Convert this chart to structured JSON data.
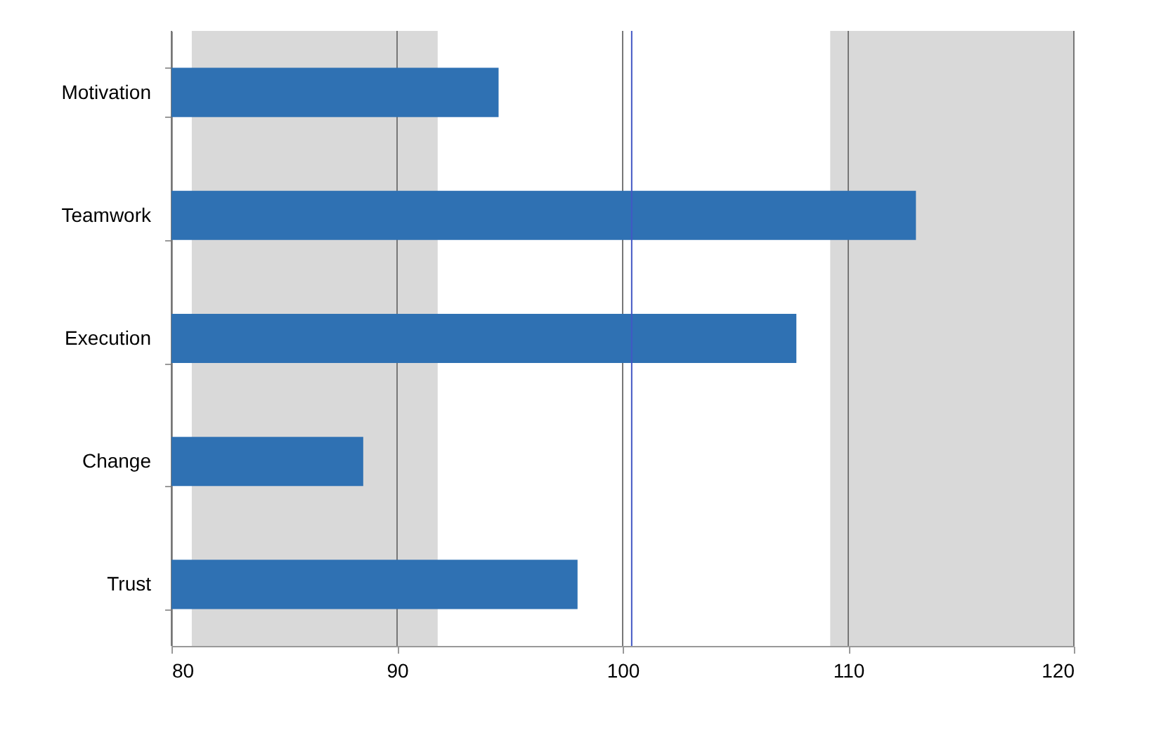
{
  "chart_data": {
    "type": "bar",
    "orientation": "horizontal",
    "categories": [
      "Motivation",
      "Teamwork",
      "Execution",
      "Change",
      "Trust"
    ],
    "values": [
      94.5,
      113,
      107.7,
      88.5,
      98
    ],
    "color": "#2f71b3",
    "xlim": [
      80,
      120
    ],
    "xticks": [
      80,
      90,
      100,
      110,
      120
    ],
    "grid": "x",
    "bands": [
      {
        "axis": "x",
        "from": 80.9,
        "to": 91.8,
        "color": "#d9d9d9"
      },
      {
        "axis": "x",
        "from": 109.2,
        "to": 120,
        "color": "#d9d9d9"
      }
    ],
    "ref_lines": [
      {
        "axis": "x",
        "value": 100.4,
        "color": "#4257c4"
      }
    ]
  }
}
